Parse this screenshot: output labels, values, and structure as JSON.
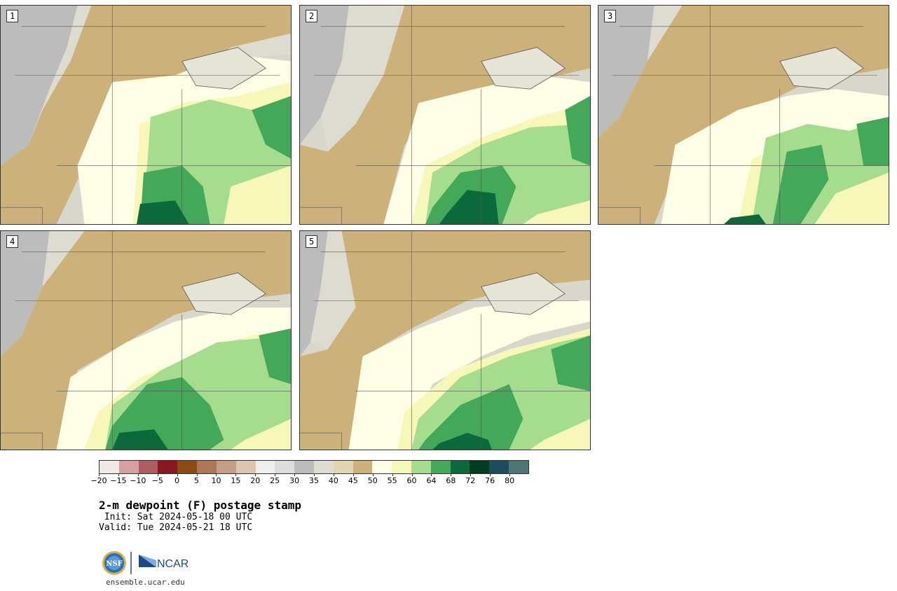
{
  "panels": [
    {
      "label": "1"
    },
    {
      "label": "2"
    },
    {
      "label": "3"
    },
    {
      "label": "4"
    },
    {
      "label": "5"
    }
  ],
  "colorbar": {
    "ticks": [
      "−20",
      "−15",
      "−10",
      "−5",
      "0",
      "5",
      "10",
      "15",
      "20",
      "25",
      "30",
      "35",
      "40",
      "45",
      "50",
      "55",
      "60",
      "64",
      "68",
      "72",
      "76",
      "80"
    ],
    "colors": [
      "#f2e8e6",
      "#d4a0a0",
      "#ad5c62",
      "#8a1620",
      "#8c4a14",
      "#ac7858",
      "#c49e86",
      "#dcc4b2",
      "#eeeeee",
      "#dcdcdc",
      "#bcbcbc",
      "#dedcd0",
      "#e2d6b2",
      "#ccb27a",
      "#fefde6",
      "#f6f7b8",
      "#a6dc8e",
      "#44a85a",
      "#0a6a3c",
      "#033c22",
      "#1e4c5c",
      "#4e7474"
    ]
  },
  "title": "2-m dewpoint (F) postage stamp",
  "init": " Init: Sat 2024-05-18 00 UTC",
  "valid": "Valid: Tue 2024-05-21 18 UTC",
  "logos": {
    "nsf": "NSF",
    "ncar": "NCAR"
  },
  "site_url": "ensemble.ucar.edu"
}
